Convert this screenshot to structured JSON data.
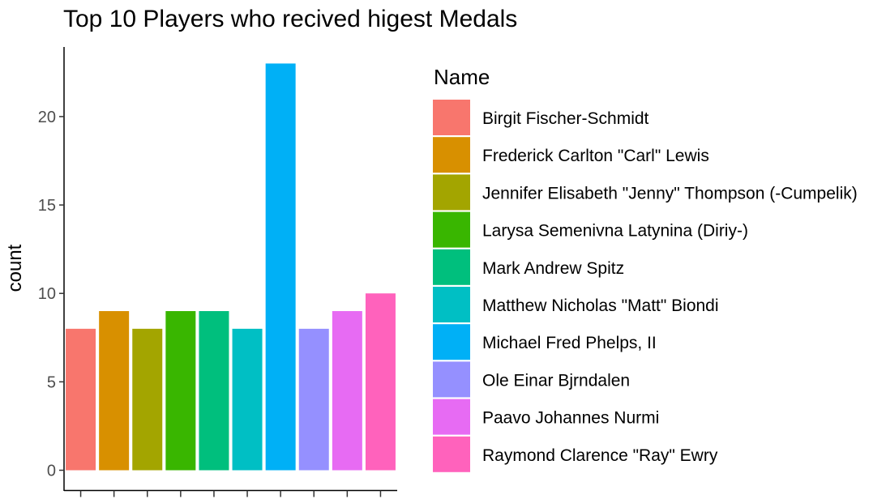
{
  "chart_data": {
    "type": "bar",
    "title": "Top 10 Players who recived higest Medals",
    "xlabel": "",
    "ylabel": "count",
    "ylim": [
      0,
      23.5
    ],
    "yticks": [
      0,
      5,
      10,
      15,
      20
    ],
    "legend_title": "Name",
    "legend_position": "right",
    "grid": false,
    "categories": [
      "Birgit Fischer-Schmidt",
      "Frederick Carlton \"Carl\" Lewis",
      "Jennifer Elisabeth \"Jenny\" Thompson (-Cumpelik)",
      "Larysa Semenivna Latynina (Diriy-)",
      "Mark Andrew Spitz",
      "Matthew Nicholas \"Matt\" Biondi",
      "Michael Fred Phelps, II",
      "Ole Einar Bjrndalen",
      "Paavo Johannes Nurmi",
      "Raymond Clarence \"Ray\" Ewry"
    ],
    "values": [
      8,
      9,
      8,
      9,
      9,
      8,
      23,
      8,
      9,
      10
    ],
    "colors": [
      "#F8766D",
      "#D89000",
      "#A3A500",
      "#39B600",
      "#00BF7D",
      "#00BFC4",
      "#00B0F6",
      "#9590FF",
      "#E76BF3",
      "#FF62BC"
    ]
  }
}
